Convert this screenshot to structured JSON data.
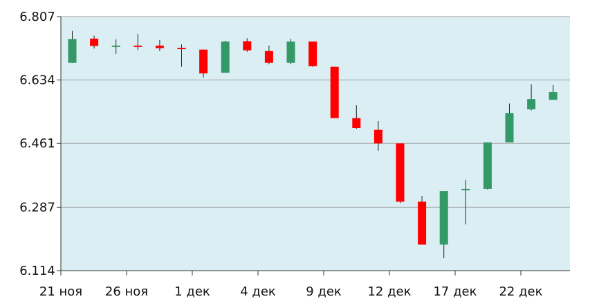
{
  "chart_data": {
    "type": "candlestick",
    "title": "",
    "xlabel": "",
    "ylabel": "",
    "ylim": [
      6.114,
      6.807
    ],
    "yticks": [
      "6.807",
      "6.634",
      "6.461",
      "6.287",
      "6.114"
    ],
    "xticks": [
      {
        "label": "21 ноя",
        "index": 0
      },
      {
        "label": "26 ноя",
        "index": 3
      },
      {
        "label": "1 дек",
        "index": 6
      },
      {
        "label": "4 дек",
        "index": 9
      },
      {
        "label": "9 дек",
        "index": 12
      },
      {
        "label": "12 дек",
        "index": 15
      },
      {
        "label": "17 дек",
        "index": 18
      },
      {
        "label": "22 дек",
        "index": 21
      }
    ],
    "grid": true,
    "colors": {
      "up": "#339966",
      "down": "#ff0000",
      "plot_background": "#daeef3",
      "grid": "#a0a0a0",
      "axis": "#333333",
      "wick": "#222222"
    },
    "candles": [
      {
        "open": 6.681,
        "close": 6.746,
        "high": 6.768,
        "low": 6.681
      },
      {
        "open": 6.747,
        "close": 6.727,
        "high": 6.755,
        "low": 6.72
      },
      {
        "open": 6.728,
        "close": 6.728,
        "high": 6.745,
        "low": 6.705
      },
      {
        "open": 6.728,
        "close": 6.726,
        "high": 6.76,
        "low": 6.716
      },
      {
        "open": 6.728,
        "close": 6.721,
        "high": 6.743,
        "low": 6.713
      },
      {
        "open": 6.722,
        "close": 6.72,
        "high": 6.731,
        "low": 6.67
      },
      {
        "open": 6.717,
        "close": 6.652,
        "high": 6.717,
        "low": 6.641
      },
      {
        "open": 6.654,
        "close": 6.739,
        "high": 6.741,
        "low": 6.654
      },
      {
        "open": 6.74,
        "close": 6.715,
        "high": 6.748,
        "low": 6.711
      },
      {
        "open": 6.713,
        "close": 6.681,
        "high": 6.728,
        "low": 6.677
      },
      {
        "open": 6.681,
        "close": 6.739,
        "high": 6.746,
        "low": 6.677
      },
      {
        "open": 6.739,
        "close": 6.672,
        "high": 6.739,
        "low": 6.67
      },
      {
        "open": 6.67,
        "close": 6.53,
        "high": 6.67,
        "low": 6.53
      },
      {
        "open": 6.53,
        "close": 6.503,
        "high": 6.565,
        "low": 6.501
      },
      {
        "open": 6.498,
        "close": 6.461,
        "high": 6.522,
        "low": 6.441
      },
      {
        "open": 6.461,
        "close": 6.302,
        "high": 6.461,
        "low": 6.298
      },
      {
        "open": 6.302,
        "close": 6.185,
        "high": 6.318,
        "low": 6.185
      },
      {
        "open": 6.185,
        "close": 6.331,
        "high": 6.331,
        "low": 6.148
      },
      {
        "open": 6.334,
        "close": 6.337,
        "high": 6.361,
        "low": 6.24
      },
      {
        "open": 6.337,
        "close": 6.464,
        "high": 6.464,
        "low": 6.335
      },
      {
        "open": 6.464,
        "close": 6.544,
        "high": 6.57,
        "low": 6.464
      },
      {
        "open": 6.554,
        "close": 6.582,
        "high": 6.622,
        "low": 6.551
      },
      {
        "open": 6.58,
        "close": 6.601,
        "high": 6.62,
        "low": 6.58
      }
    ]
  }
}
